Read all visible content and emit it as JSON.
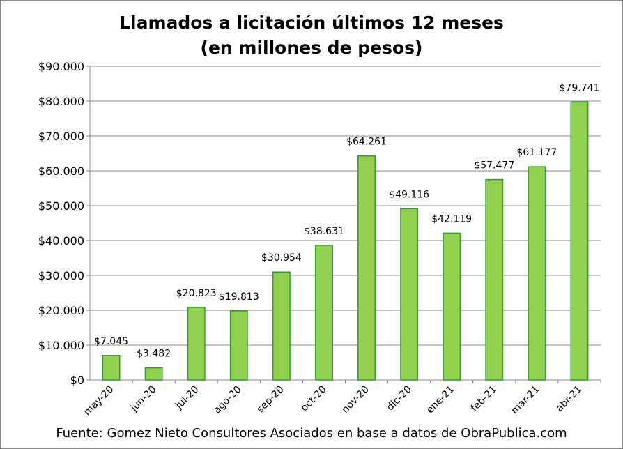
{
  "chart_data": {
    "type": "bar",
    "title": [
      "Llamados a licitación últimos 12 meses",
      "(en millones de pesos)"
    ],
    "categories": [
      "may-20",
      "jun-20",
      "jul-20",
      "ago-20",
      "sep-20",
      "oct-20",
      "nov-20",
      "dic-20",
      "ene-21",
      "feb-21",
      "mar-21",
      "abr-21"
    ],
    "values": [
      7045,
      3482,
      20823,
      19813,
      30954,
      38631,
      64261,
      49116,
      42119,
      57477,
      61177,
      79741
    ],
    "data_labels": [
      "$7.045",
      "$3.482",
      "$20.823",
      "$19.813",
      "$30.954",
      "$38.631",
      "$64.261",
      "$49.116",
      "$42.119",
      "$57.477",
      "$61.177",
      "$79.741"
    ],
    "ylim": [
      0,
      90000
    ],
    "yticks": [
      0,
      10000,
      20000,
      30000,
      40000,
      50000,
      60000,
      70000,
      80000,
      90000
    ],
    "ytick_labels": [
      "$0",
      "$10.000",
      "$20.000",
      "$30.000",
      "$40.000",
      "$50.000",
      "$60.000",
      "$70.000",
      "$80.000",
      "$90.000"
    ],
    "grid": true,
    "legend": "none",
    "colors": {
      "bar_fill": "#92d050",
      "bar_edge": "#2f9e2f",
      "grid": "#8c8c8c"
    }
  },
  "source_note": "Fuente: Gomez Nieto Consultores Asociados en base a datos de ObraPublica.com"
}
